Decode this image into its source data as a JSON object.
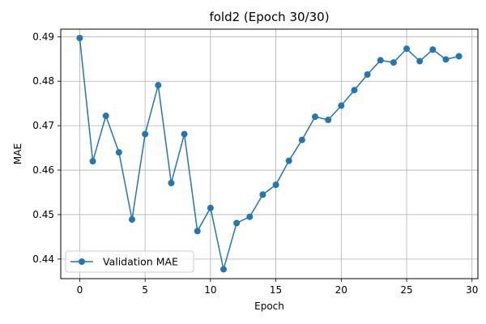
{
  "chart_data": {
    "type": "line",
    "title": "fold2 (Epoch 30/30)",
    "xlabel": "Epoch",
    "ylabel": "MAE",
    "xlim": [
      -1.45,
      30.45
    ],
    "ylim": [
      0.4356,
      0.4917
    ],
    "xticks": [
      0,
      5,
      10,
      15,
      20,
      25,
      30
    ],
    "yticks": [
      0.44,
      0.45,
      0.46,
      0.47,
      0.48,
      0.49
    ],
    "ytick_labels": [
      "0.44",
      "0.45",
      "0.46",
      "0.47",
      "0.48",
      "0.49"
    ],
    "grid": true,
    "legend_position": "lower-left",
    "series": [
      {
        "name": "Validation MAE",
        "color": "#1f77b4",
        "marker": "circle",
        "x": [
          0,
          1,
          2,
          3,
          4,
          5,
          6,
          7,
          8,
          9,
          10,
          11,
          12,
          13,
          14,
          15,
          16,
          17,
          18,
          19,
          20,
          21,
          22,
          23,
          24,
          25,
          26,
          27,
          28,
          29
        ],
        "y": [
          0.4897,
          0.462,
          0.4722,
          0.464,
          0.4489,
          0.4681,
          0.4791,
          0.4571,
          0.4681,
          0.4463,
          0.4515,
          0.4377,
          0.4481,
          0.4495,
          0.4545,
          0.4567,
          0.4621,
          0.4668,
          0.472,
          0.4713,
          0.4745,
          0.478,
          0.4815,
          0.4847,
          0.4842,
          0.4873,
          0.4845,
          0.4871,
          0.4849,
          0.4856
        ]
      }
    ]
  }
}
